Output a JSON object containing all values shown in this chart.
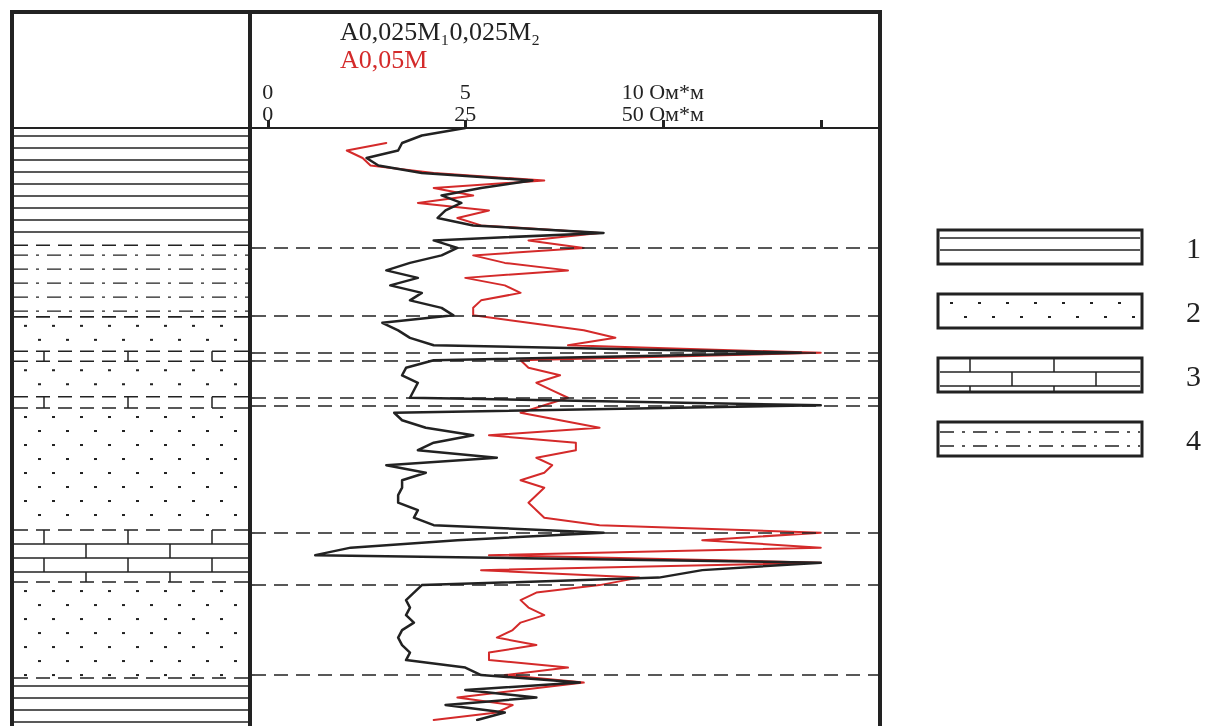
{
  "chart_data": {
    "type": "line",
    "orientation": "horizontal",
    "categories": [
      null,
      null,
      null,
      null,
      null,
      null,
      null,
      null,
      null,
      null,
      null,
      null,
      null,
      null,
      null,
      null,
      null,
      null,
      null,
      null,
      null,
      null,
      null,
      null,
      null,
      null,
      null,
      null,
      null,
      null,
      null,
      null,
      null,
      null,
      null,
      null,
      null,
      null,
      null,
      null,
      null,
      null,
      null,
      null,
      null,
      null,
      null,
      null,
      null,
      null,
      null,
      null,
      null,
      null,
      null,
      null,
      null,
      null,
      null,
      null,
      null,
      null,
      null,
      null,
      null,
      null,
      null,
      null,
      null,
      null,
      null,
      null,
      null,
      null,
      null,
      null,
      null,
      null,
      null,
      null
    ],
    "series": [
      {
        "name": "A0,025M₁0,025M₂",
        "color": "#222222",
        "values": [
          5.0,
          3.9,
          3.4,
          3.3,
          2.5,
          2.8,
          3.9,
          6.7,
          5.4,
          4.4,
          4.9,
          4.5,
          4.3,
          5.2,
          8.5,
          4.2,
          4.8,
          4.4,
          3.6,
          3.0,
          3.8,
          3.1,
          3.9,
          3.6,
          4.4,
          4.7,
          2.9,
          3.3,
          3.6,
          4.2,
          13.5,
          4.2,
          3.5,
          3.4,
          3.8,
          3.7,
          3.6,
          14,
          3.2,
          3.4,
          4.0,
          5.2,
          4.2,
          3.8,
          5.8,
          3.0,
          4.0,
          3.4,
          3.4,
          3.3,
          3.3,
          3.8,
          3.7,
          4.2,
          8.5,
          4.8,
          2.1,
          1.2,
          14,
          11.0,
          9.9,
          3.9,
          3.7,
          3.5,
          3.6,
          3.5,
          3.7,
          3.4,
          3.3,
          3.4,
          3.6,
          3.5,
          5.0,
          5.4,
          7.9,
          5.0,
          6.8,
          4.5,
          6.0,
          5.3
        ]
      },
      {
        "name": "A0,05M",
        "color": "#d42a2a",
        "axis": "x2",
        "values": [
          null,
          null,
          15,
          10,
          12,
          13,
          21,
          35,
          21,
          26,
          19,
          28,
          24,
          27,
          42,
          33,
          40,
          26,
          30,
          38,
          25,
          30,
          32,
          27,
          26,
          26,
          33,
          40,
          44,
          38,
          70,
          32,
          33,
          37,
          34,
          36,
          38,
          35,
          32,
          37,
          42,
          28,
          39,
          39,
          34,
          36,
          35,
          32,
          35,
          34,
          33,
          34,
          35,
          42,
          70,
          55,
          70,
          28,
          70,
          27,
          47,
          42,
          34,
          32,
          33,
          35,
          32,
          31,
          29,
          34,
          28,
          28,
          38,
          30,
          40,
          32,
          24,
          31,
          29,
          21
        ]
      }
    ],
    "xlim": [
      -0.4,
      15.5
    ],
    "xticks": [
      0,
      5,
      {
        "value": 10,
        "label": "10 Ом*м"
      },
      {
        "value": 14,
        "label": null
      }
    ],
    "x2lim": [
      -2,
      77.5
    ],
    "x2ticks": [
      0,
      25,
      {
        "value": 50,
        "label": "50 Ом*м"
      },
      {
        "value": 70,
        "label": null
      }
    ],
    "tick_labels": "x",
    "line_style": "solid",
    "grid": "y",
    "annotations": [
      "1",
      "2",
      "3",
      "4"
    ]
  }
}
